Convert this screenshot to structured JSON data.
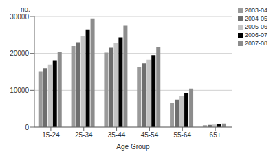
{
  "chart_data": {
    "type": "bar",
    "y_label": "no.",
    "x_label": "Age Group",
    "categories": [
      "15-24",
      "25-34",
      "35-44",
      "45-54",
      "55-64",
      "65+"
    ],
    "series": [
      {
        "name": "2003-04",
        "color": "#9a9a9a",
        "values": [
          15000,
          22000,
          20200,
          16300,
          6500,
          500
        ]
      },
      {
        "name": "2004-05",
        "color": "#6e6e6e",
        "values": [
          16000,
          23000,
          21500,
          17300,
          7500,
          600
        ]
      },
      {
        "name": "2005-06",
        "color": "#c4c4c4",
        "values": [
          17000,
          24700,
          22800,
          18300,
          8500,
          700
        ]
      },
      {
        "name": "2006-07",
        "color": "#000000",
        "values": [
          18000,
          26500,
          24300,
          19500,
          9300,
          900
        ]
      },
      {
        "name": "2007-08",
        "color": "#8c8c8c",
        "values": [
          20300,
          29500,
          27500,
          21600,
          10500,
          1000
        ]
      }
    ],
    "ylim": [
      0,
      30000
    ],
    "yticks": [
      0,
      10000,
      20000,
      30000
    ],
    "grid": true,
    "legend": "top-right"
  }
}
